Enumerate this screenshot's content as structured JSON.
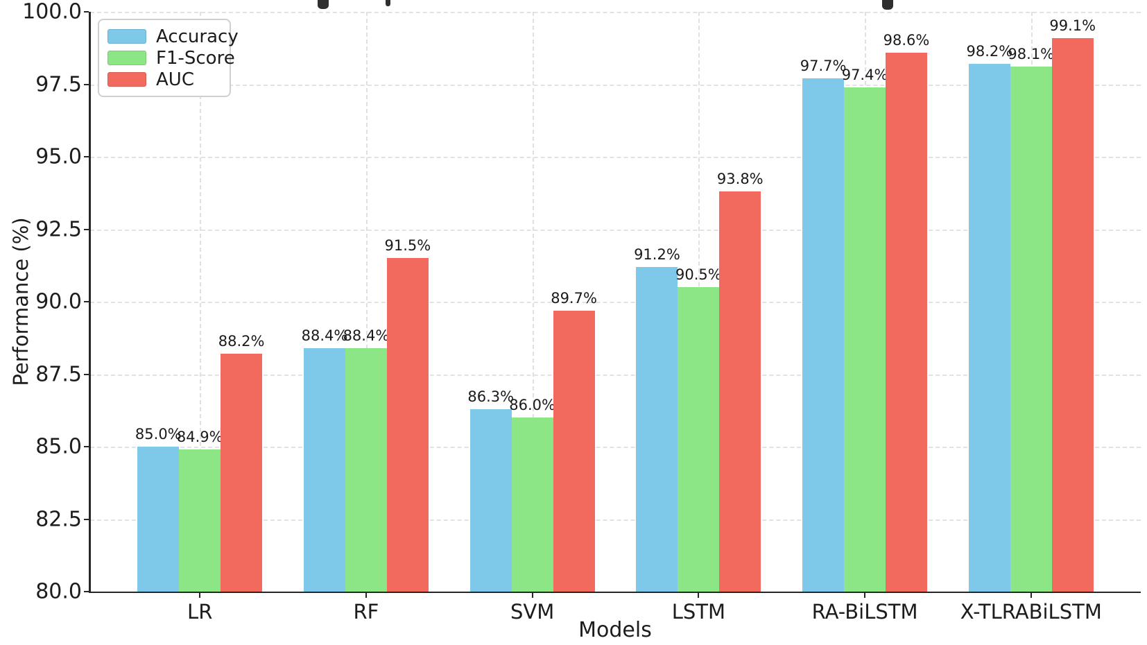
{
  "chart_data": {
    "type": "bar",
    "title_cut_off": true,
    "categories": [
      "LR",
      "RF",
      "SVM",
      "LSTM",
      "RA-BiLSTM",
      "X-TLRABiLSTM"
    ],
    "series": [
      {
        "name": "Accuracy",
        "color": "#7EC9EA",
        "values": [
          85.0,
          88.4,
          86.3,
          91.2,
          97.7,
          98.2
        ],
        "labels": [
          "85.0%",
          "88.4%",
          "86.3%",
          "91.2%",
          "97.7%",
          "98.2%"
        ]
      },
      {
        "name": "F1-Score",
        "color": "#8DE685",
        "values": [
          84.9,
          88.4,
          86.0,
          90.5,
          97.4,
          98.1
        ],
        "labels": [
          "84.9%",
          "88.4%",
          "86.0%",
          "90.5%",
          "97.4%",
          "98.1%"
        ]
      },
      {
        "name": "AUC",
        "color": "#F2695E",
        "values": [
          88.2,
          91.5,
          89.7,
          93.8,
          98.6,
          99.1
        ],
        "labels": [
          "88.2%",
          "91.5%",
          "89.7%",
          "93.8%",
          "98.6%",
          "99.1%"
        ]
      }
    ],
    "xlabel": "Models",
    "ylabel": "Performance (%)",
    "ylim": [
      80,
      100
    ],
    "ytick_labels": [
      "80.0",
      "82.5",
      "85.0",
      "87.5",
      "90.0",
      "92.5",
      "95.0",
      "97.5",
      "100.0"
    ],
    "grid": true,
    "legend_position": "upper left"
  },
  "colors": {
    "axis_spine": "#262626",
    "grid_horizontal": "#e6e1e1",
    "grid_vertical": "#e0e0e0",
    "text": "#1c1c1c",
    "background": "#ffffff"
  }
}
